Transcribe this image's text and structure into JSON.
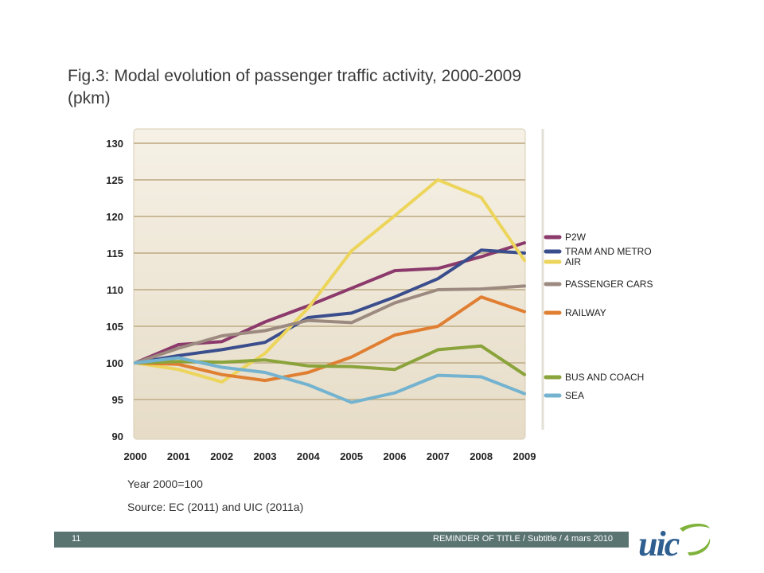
{
  "slide": {
    "title_line1": "Fig.3: Modal evolution of passenger traffic activity, 2000-2009",
    "title_line2": "(pkm)",
    "note_base": "Year 2000=100",
    "note_source": "Source: EC (2011) and UIC (2011a)",
    "footer_page": "11",
    "footer_text": "REMINDER OF TITLE / Subtitle / 4 mars 2010",
    "logo_text": "uic",
    "logo_icon": "uic-logo-icon"
  },
  "colors": {
    "plot_bg": "#efe7d6",
    "grid": "#c9b997",
    "footer": "#5a7472",
    "logo": "#2e5f90"
  },
  "chart_data": {
    "type": "line",
    "title": "Fig.3: Modal evolution of passenger traffic activity, 2000-2009 (pkm)",
    "xlabel": "",
    "ylabel": "",
    "x": [
      "2000",
      "2001",
      "2002",
      "2003",
      "2004",
      "2005",
      "2006",
      "2007",
      "2008",
      "2009"
    ],
    "yticks": [
      "90",
      "95",
      "100",
      "105",
      "110",
      "115",
      "120",
      "125",
      "130"
    ],
    "ylim": [
      90,
      130
    ],
    "grid": true,
    "legend_position": "right",
    "series": [
      {
        "name": "P2W",
        "color": "#8b3a6b",
        "values": [
          100,
          102.5,
          102.9,
          105.6,
          107.8,
          110.2,
          112.6,
          112.9,
          114.5,
          116.4
        ]
      },
      {
        "name": "TRAM AND METRO",
        "color": "#3a4d8c",
        "values": [
          100,
          101,
          101.8,
          102.8,
          106.2,
          106.8,
          109,
          111.5,
          115.4,
          115
        ]
      },
      {
        "name": "AIR",
        "color": "#ecd55a",
        "values": [
          100,
          99.1,
          97.4,
          101.3,
          107.5,
          115.3,
          120.1,
          125,
          122.6,
          114
        ]
      },
      {
        "name": "PASSENGER CARS",
        "color": "#9c8a80",
        "values": [
          100,
          102,
          103.7,
          104.4,
          105.8,
          105.5,
          108.2,
          110,
          110.1,
          110.5
        ]
      },
      {
        "name": "RAILWAY",
        "color": "#e07f32",
        "values": [
          100,
          99.8,
          98.4,
          97.6,
          98.7,
          100.8,
          103.8,
          105,
          109,
          107
        ]
      },
      {
        "name": "BUS AND COACH",
        "color": "#8aa33a",
        "values": [
          100,
          100.2,
          100.1,
          100.4,
          99.6,
          99.5,
          99.1,
          101.8,
          102.3,
          98.4
        ]
      },
      {
        "name": "SEA",
        "color": "#74b3d0",
        "values": [
          100,
          100.7,
          99.4,
          98.7,
          97,
          94.6,
          95.9,
          98.3,
          98.1,
          95.8
        ]
      }
    ]
  }
}
